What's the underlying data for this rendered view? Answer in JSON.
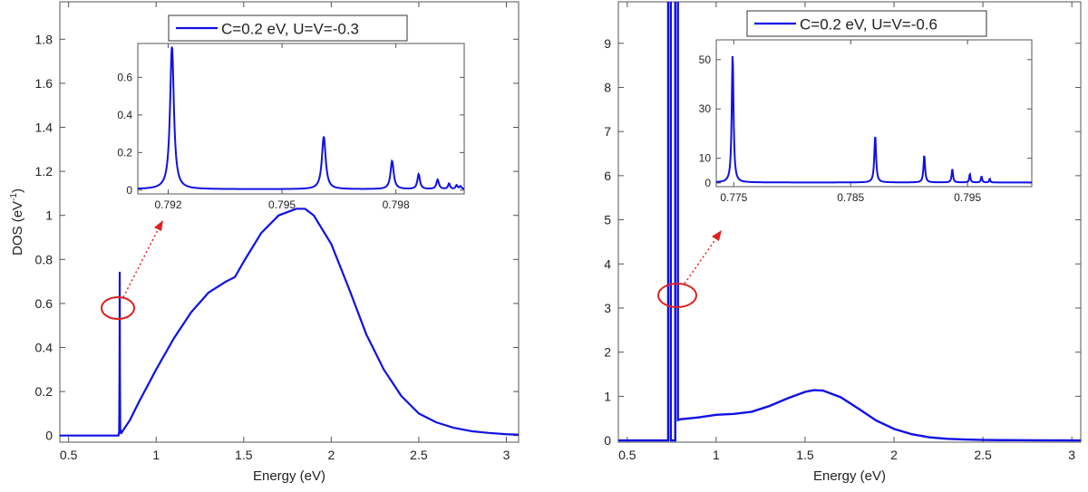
{
  "chart_data": [
    {
      "type": "line",
      "ylabel": "DOS (eV",
      "ylabel_sup": "-1",
      "ylabel_end": ")",
      "xlabel": "Energy (eV)",
      "legend": "C=0.2 eV, U=V=-0.3",
      "legend_placement": "top-center",
      "xlim": [
        0.45,
        3.07
      ],
      "ylim": [
        -0.03,
        1.97
      ],
      "xticks": [
        0.5,
        1,
        1.5,
        2,
        2.5,
        3
      ],
      "xtick_labels": [
        "0.5",
        "1",
        "1.5",
        "2",
        "2.5",
        "3"
      ],
      "yticks": [
        0,
        0.2,
        0.4,
        0.6,
        0.8,
        1,
        1.2,
        1.4,
        1.6,
        1.8
      ],
      "ytick_labels": [
        "0",
        "0.2",
        "0.4",
        "0.6",
        "0.8",
        "1",
        "1.2",
        "1.4",
        "1.6",
        "1.8"
      ],
      "color": "#1010e6",
      "series": [
        {
          "x": [
            0.45,
            0.785,
            0.789,
            0.791,
            0.792,
            0.793,
            0.795,
            0.8,
            0.85,
            0.9,
            1.0,
            1.1,
            1.2,
            1.3,
            1.4,
            1.45,
            1.5,
            1.6,
            1.7,
            1.8,
            1.85,
            1.9,
            2.0,
            2.1,
            2.2,
            2.3,
            2.4,
            2.5,
            2.6,
            2.7,
            2.8,
            2.9,
            3.0,
            3.07
          ],
          "y": [
            0,
            0,
            0.02,
            0.3,
            0.74,
            0.3,
            0.03,
            0.01,
            0.07,
            0.15,
            0.3,
            0.44,
            0.56,
            0.65,
            0.7,
            0.72,
            0.79,
            0.92,
            1.0,
            1.03,
            1.03,
            1.0,
            0.87,
            0.67,
            0.46,
            0.3,
            0.18,
            0.1,
            0.06,
            0.035,
            0.02,
            0.012,
            0.006,
            0.004
          ]
        }
      ],
      "annotation": {
        "type": "ellipse-with-dotted-arrow",
        "x": 0.79,
        "y": 0.6,
        "color": "#e02020"
      },
      "inset": {
        "xlim": [
          0.7912,
          0.7998
        ],
        "ylim": [
          -0.02,
          0.78
        ],
        "xticks": [
          0.792,
          0.795,
          0.798
        ],
        "xtick_labels": [
          "0.792",
          "0.795",
          "0.798"
        ],
        "yticks": [
          0,
          0.2,
          0.4,
          0.6
        ],
        "ytick_labels": [
          "0",
          "0.2",
          "0.4",
          "0.6"
        ],
        "baseline": 0.005,
        "peaks": [
          {
            "x": 0.7921,
            "y": 0.76,
            "w": 6e-05
          },
          {
            "x": 0.7961,
            "y": 0.28,
            "w": 6e-05
          },
          {
            "x": 0.7979,
            "y": 0.15,
            "w": 5e-05
          },
          {
            "x": 0.7986,
            "y": 0.08,
            "w": 4e-05
          },
          {
            "x": 0.7991,
            "y": 0.05,
            "w": 4e-05
          },
          {
            "x": 0.7994,
            "y": 0.03,
            "w": 3e-05
          },
          {
            "x": 0.7996,
            "y": 0.02,
            "w": 3e-05
          },
          {
            "x": 0.7997,
            "y": 0.015,
            "w": 3e-05
          }
        ]
      }
    },
    {
      "type": "line",
      "ylabel": "",
      "xlabel": "Energy (eV)",
      "legend": "C=0.2 eV, U=V=-0.6",
      "legend_placement": "top-center",
      "xlim": [
        0.45,
        3.05
      ],
      "ylim": [
        -0.04,
        9.94
      ],
      "xticks": [
        0.5,
        1,
        1.5,
        2,
        2.5,
        3
      ],
      "xtick_labels": [
        "0.5",
        "1",
        "1.5",
        "2",
        "2.5",
        "3"
      ],
      "yticks": [
        0,
        1,
        2,
        3,
        4,
        5,
        6,
        7,
        8,
        9
      ],
      "ytick_labels": [
        "0",
        "1",
        "2",
        "3",
        "4",
        "5",
        "6",
        "7",
        "8",
        "9"
      ],
      "color": "#1010e6",
      "series": [
        {
          "x": [
            0.45,
            0.73,
            0.73,
            0.745,
            0.745,
            0.77,
            0.77,
            0.785,
            0.785,
            0.8,
            0.9,
            1.0,
            1.1,
            1.2,
            1.3,
            1.4,
            1.5,
            1.55,
            1.6,
            1.7,
            1.8,
            1.9,
            2.0,
            2.1,
            2.2,
            2.3,
            2.4,
            2.5,
            2.6,
            2.7,
            2.8,
            3.05
          ],
          "y": [
            0,
            0,
            10.5,
            10.5,
            0,
            0,
            10.5,
            10.5,
            0.46,
            0.48,
            0.52,
            0.58,
            0.6,
            0.65,
            0.78,
            0.95,
            1.1,
            1.14,
            1.13,
            0.98,
            0.72,
            0.45,
            0.26,
            0.14,
            0.07,
            0.035,
            0.02,
            0.01,
            0.006,
            0.004,
            0.002,
            0.0
          ]
        }
      ],
      "annotation": {
        "type": "ellipse-with-dotted-arrow",
        "x": 0.765,
        "y": 3.3,
        "color": "#e02020"
      },
      "inset": {
        "xlim": [
          0.7735,
          0.8005
        ],
        "ylim": [
          -1.5,
          58
        ],
        "xticks": [
          0.775,
          0.785,
          0.795
        ],
        "xtick_labels": [
          "0.775",
          "0.785",
          "0.795"
        ],
        "yticks": [
          0,
          10,
          30,
          50
        ],
        "ytick_labels": [
          "0",
          "10",
          "30",
          "50"
        ],
        "baseline": 0.2,
        "peaks": [
          {
            "x": 0.7749,
            "y": 52,
            "w": 9e-05
          },
          {
            "x": 0.7871,
            "y": 19,
            "w": 9e-05
          },
          {
            "x": 0.7913,
            "y": 11,
            "w": 8e-05
          },
          {
            "x": 0.7937,
            "y": 5.5,
            "w": 7e-05
          },
          {
            "x": 0.7952,
            "y": 3.5,
            "w": 6e-05
          },
          {
            "x": 0.7962,
            "y": 2.5,
            "w": 6e-05
          },
          {
            "x": 0.7969,
            "y": 1.5,
            "w": 5e-05
          }
        ]
      }
    }
  ]
}
